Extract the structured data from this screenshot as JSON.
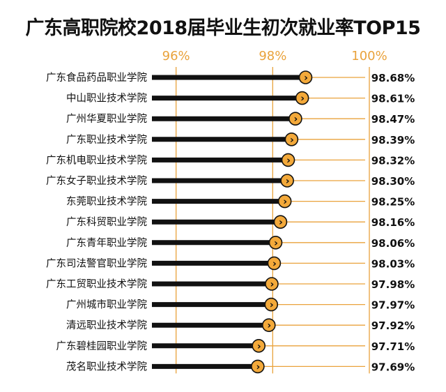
{
  "chart_data": {
    "type": "bar",
    "title": "广东高职院校2018届毕业生初次就业率TOP15",
    "xlim": [
      95.5,
      100
    ],
    "x_ticks": [
      {
        "value": 96,
        "label": "96%"
      },
      {
        "value": 98,
        "label": "98%"
      },
      {
        "value": 100,
        "label": "100%"
      }
    ],
    "categories": [
      "广东食品药品职业学院",
      "中山职业技术学院",
      "广州华夏职业学院",
      "广东职业技术学院",
      "广东机电职业技术学院",
      "广东女子职业技术学院",
      "东莞职业技术学院",
      "广东科贸职业学院",
      "广东青年职业学院",
      "广东司法警官职业学院",
      "广东工贸职业技术学院",
      "广州城市职业学院",
      "清远职业技术学院",
      "广东碧桂园职业学院",
      "茂名职业技术学院"
    ],
    "values": [
      98.68,
      98.61,
      98.47,
      98.39,
      98.32,
      98.3,
      98.25,
      98.16,
      98.06,
      98.03,
      97.98,
      97.97,
      97.92,
      97.71,
      97.69
    ],
    "value_labels": [
      "98.68%",
      "98.61%",
      "98.47%",
      "98.39%",
      "98.32%",
      "98.30%",
      "98.25%",
      "98.16%",
      "98.06%",
      "98.03%",
      "97.98%",
      "97.97%",
      "97.92%",
      "97.71%",
      "97.69%"
    ],
    "marker_glyph": "›",
    "colors": {
      "bar": "#111111",
      "accent": "#e9a23b",
      "marker": "#f3a93a"
    }
  }
}
